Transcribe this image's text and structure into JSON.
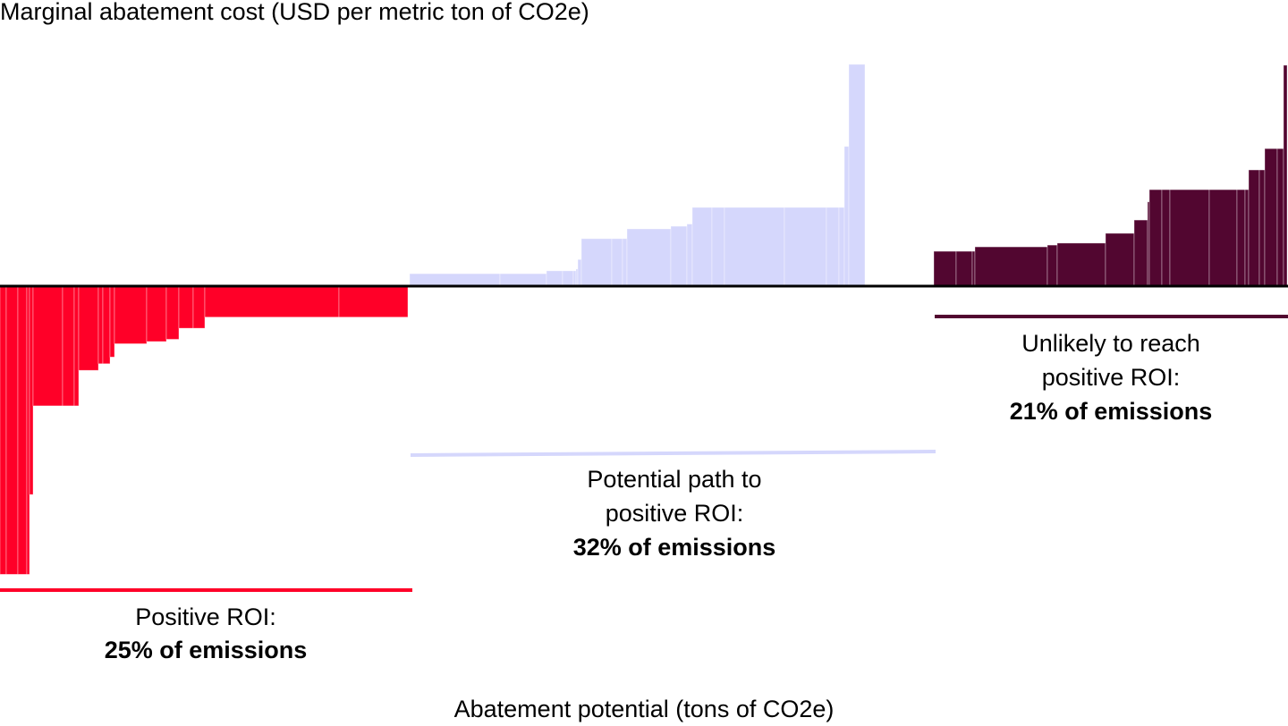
{
  "chart_data": {
    "type": "bar",
    "subtype": "marginal-abatement-cost-curve",
    "ylabel": "Marginal abatement cost (USD per metric ton of CO2e)",
    "xlabel": "Abatement potential (tons of CO2e)",
    "note": "No numeric ticks shown; widths are relative abatement units, costs relative units (max = 100)",
    "ylim": [
      -130,
      100
    ],
    "xlim": [
      0,
      1440
    ],
    "colors": {
      "positive": "#ff0028",
      "potential": "#d5d7fc",
      "unlikely": "#520630",
      "axis": "#000000"
    },
    "groups": [
      {
        "key": "positive",
        "label": "Positive ROI:",
        "share": "25% of emissions",
        "bars": [
          [
            7,
            -130
          ],
          [
            13,
            -130
          ],
          [
            10,
            -130
          ],
          [
            3,
            -130
          ],
          [
            4,
            -94
          ],
          [
            33,
            -54
          ],
          [
            13,
            -54
          ],
          [
            5,
            -54
          ],
          [
            22,
            -38
          ],
          [
            5,
            -35
          ],
          [
            8,
            -35
          ],
          [
            5,
            -32
          ],
          [
            36,
            -26
          ],
          [
            22,
            -25
          ],
          [
            14,
            -24
          ],
          [
            16,
            -19
          ],
          [
            13,
            -19
          ],
          [
            150,
            -14
          ],
          [
            77,
            -14
          ]
        ]
      },
      {
        "key": "potential",
        "label": "Potential path to positive ROI:",
        "share": "32% of emissions",
        "bars": [
          [
            101,
            5.6
          ],
          [
            52,
            5.6
          ],
          [
            18,
            6.9
          ],
          [
            12,
            6.9
          ],
          [
            3,
            6.9
          ],
          [
            2,
            7.7
          ],
          [
            4,
            12
          ],
          [
            34,
            21.4
          ],
          [
            12,
            21.4
          ],
          [
            5,
            21.4
          ],
          [
            49,
            25.8
          ],
          [
            18,
            27
          ],
          [
            6,
            28
          ],
          [
            22,
            35.5
          ],
          [
            14,
            35.5
          ],
          [
            67,
            35.5
          ],
          [
            47,
            35.5
          ],
          [
            14,
            35.5
          ],
          [
            6,
            35.5
          ],
          [
            5,
            63
          ],
          [
            18,
            100
          ]
        ]
      },
      {
        "key": "unlikely",
        "label": "Unlikely to reach positive ROI:",
        "share": "21% of emissions",
        "bars": [
          [
            25,
            15.7
          ],
          [
            18,
            15.7
          ],
          [
            3,
            15.7
          ],
          [
            81,
            17.7
          ],
          [
            11,
            18.5
          ],
          [
            54,
            19.4
          ],
          [
            32,
            23.8
          ],
          [
            15,
            29.8
          ],
          [
            2,
            38
          ],
          [
            14,
            43.5
          ],
          [
            9,
            43.5
          ],
          [
            44,
            43.5
          ],
          [
            31,
            43.5
          ],
          [
            9,
            43.5
          ],
          [
            4,
            43.5
          ],
          [
            12,
            52.4
          ],
          [
            6,
            52.4
          ],
          [
            14,
            62
          ],
          [
            7,
            62
          ],
          [
            4,
            99.6
          ]
        ]
      }
    ]
  },
  "labels": {
    "positive_line1": "Positive ROI:",
    "potential_line1": "Potential path to",
    "potential_line2": "positive ROI:",
    "unlikely_line1": "Unlikely to reach",
    "unlikely_line2": "positive ROI:"
  }
}
